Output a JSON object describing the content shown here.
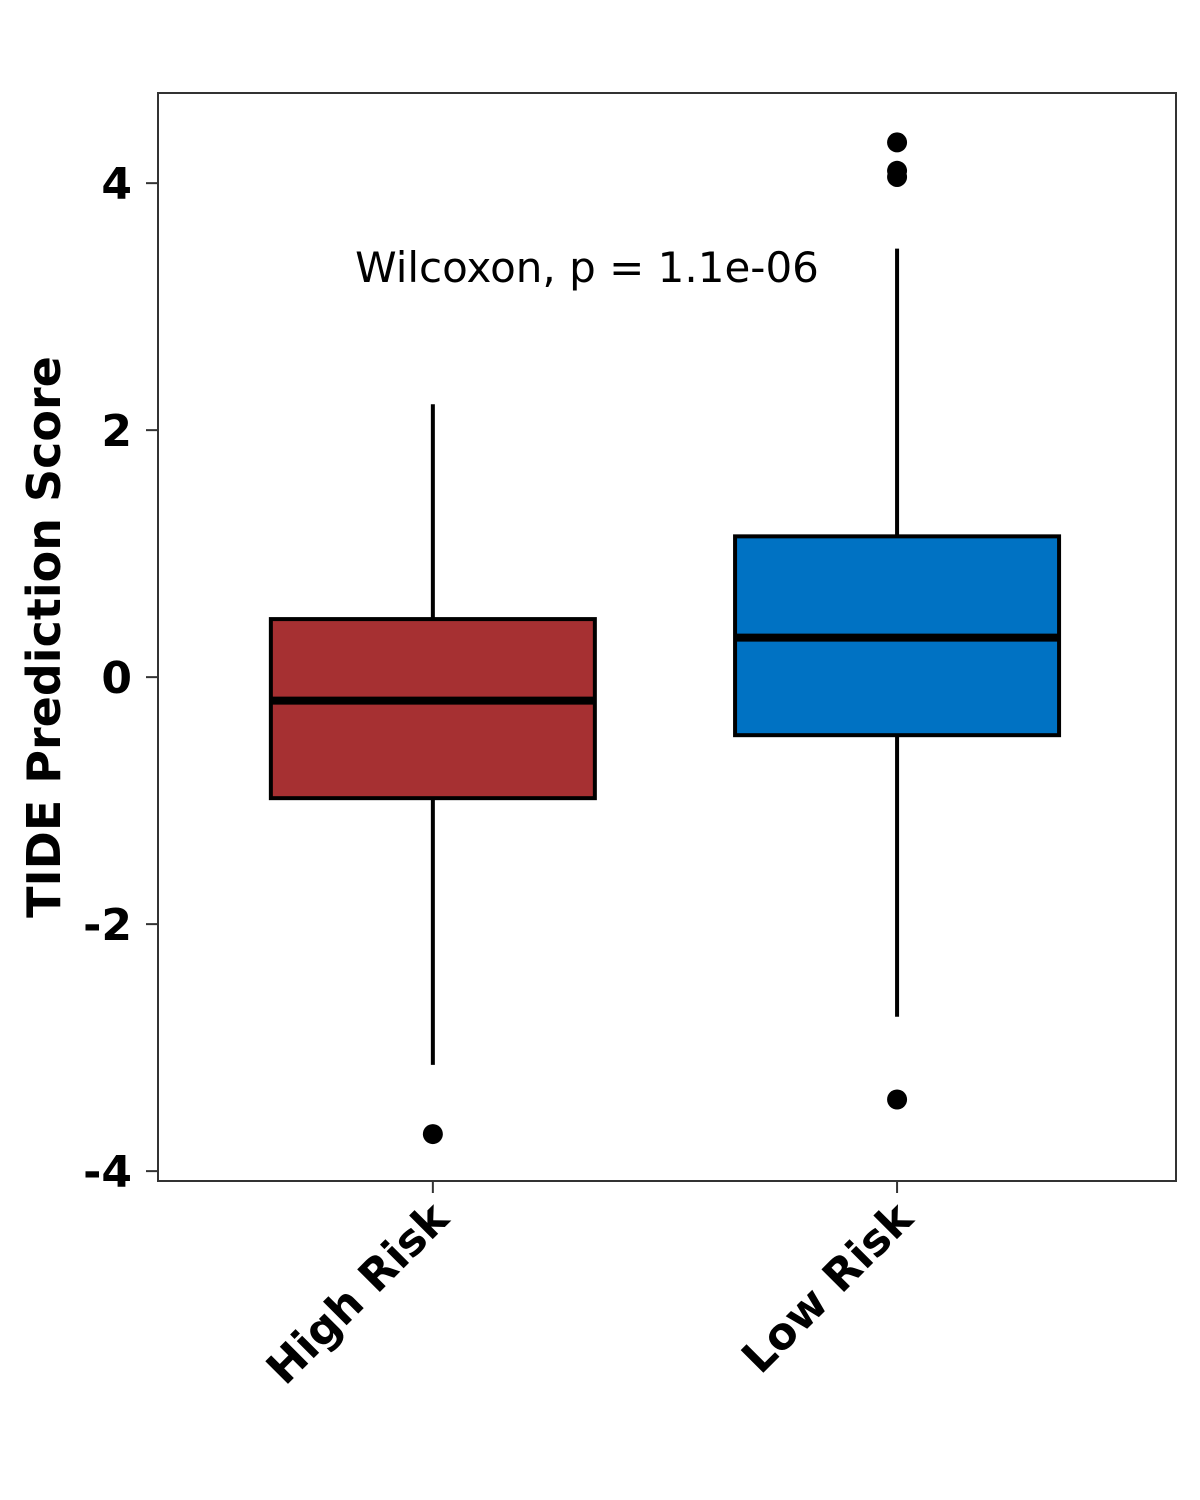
{
  "chart_data": {
    "type": "box",
    "ylabel": "TIDE Prediction Score",
    "xlabel": "",
    "ylim": [
      -4.08,
      4.73
    ],
    "yticks": [
      -4,
      -2,
      0,
      2,
      4
    ],
    "grid": false,
    "legend": "none",
    "annotation": "Wilcoxon, p = 1.1e-06",
    "categories": [
      "High Risk",
      "Low Risk"
    ],
    "boxes": [
      {
        "category": "High Risk",
        "color": "#A63032",
        "whisker_low": -3.14,
        "q1": -0.98,
        "median": -0.19,
        "q3": 0.47,
        "whisker_high": 2.21,
        "outliers": [
          -3.7
        ]
      },
      {
        "category": "Low Risk",
        "color": "#0072C3",
        "whisker_low": -2.75,
        "q1": -0.47,
        "median": 0.32,
        "q3": 1.14,
        "whisker_high": 3.47,
        "outliers": [
          4.33,
          4.1,
          4.05,
          -3.42
        ]
      }
    ]
  }
}
